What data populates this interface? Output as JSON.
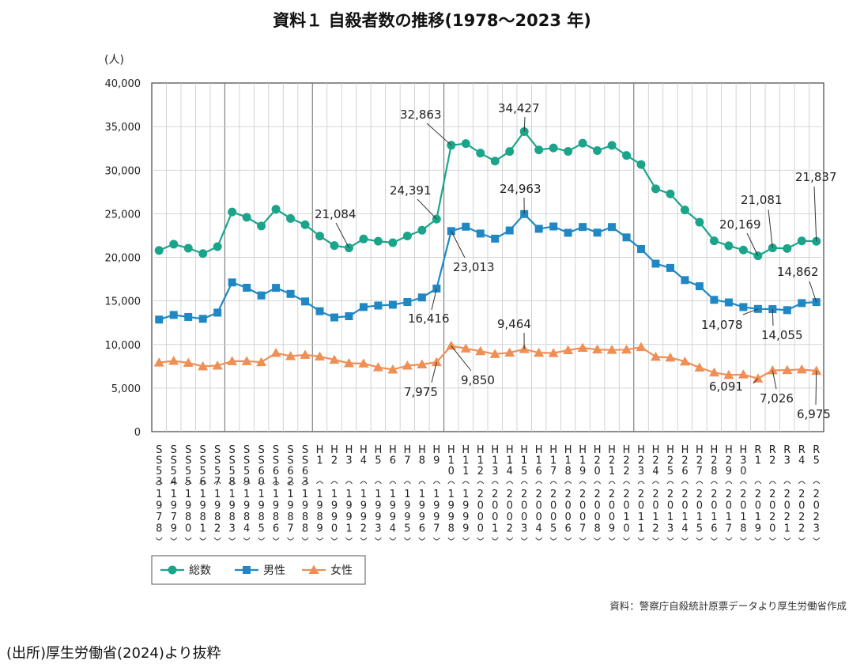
{
  "chart_data": {
    "type": "line",
    "title": "資料１ 自殺者数の推移(1978～2023 年)",
    "ylabel": "(人)",
    "xlabel": "",
    "ylim": [
      0,
      40000
    ],
    "yticks": [
      "0",
      "5,000",
      "10,000",
      "15,000",
      "20,000",
      "25,000",
      "30,000",
      "35,000",
      "40,000"
    ],
    "grid": true,
    "legend_position": "bottom-left",
    "categories": [
      "S53",
      "S54",
      "S55",
      "S56",
      "S57",
      "S58",
      "S59",
      "S60",
      "S61",
      "S62",
      "S63",
      "H1",
      "H2",
      "H3",
      "H4",
      "H5",
      "H6",
      "H7",
      "H8",
      "H9",
      "H10",
      "H11",
      "H12",
      "H13",
      "H14",
      "H15",
      "H16",
      "H17",
      "H18",
      "H19",
      "H20",
      "H21",
      "H22",
      "H23",
      "H24",
      "H25",
      "H26",
      "H27",
      "H28",
      "H29",
      "H30",
      "R1",
      "R2",
      "R3",
      "R4",
      "R5"
    ],
    "era_labels": [
      "SS53",
      "SS54",
      "SS55",
      "SS56",
      "SS57",
      "SS58",
      "SS59",
      "SS60",
      "SS61",
      "SS62",
      "SS63",
      "H1",
      "H2",
      "H3",
      "H4",
      "H5",
      "H6",
      "H7",
      "H8",
      "H9",
      "H10",
      "H11",
      "H12",
      "H13",
      "H14",
      "H15",
      "H16",
      "H17",
      "H18",
      "H19",
      "H20",
      "H21",
      "H22",
      "H23",
      "H24",
      "H25",
      "H26",
      "H27",
      "H28",
      "H29",
      "H30",
      "R1",
      "R2",
      "R3",
      "R4",
      "R5"
    ],
    "year_labels": [
      "1978",
      "1979",
      "1980",
      "1981",
      "1982",
      "1983",
      "1984",
      "1985",
      "1986",
      "1987",
      "1988",
      "1989",
      "1990",
      "1991",
      "1992",
      "1993",
      "1994",
      "1995",
      "1996",
      "1997",
      "1998",
      "1999",
      "2000",
      "2001",
      "2002",
      "2003",
      "2004",
      "2005",
      "2006",
      "2007",
      "2008",
      "2009",
      "2010",
      "2011",
      "2012",
      "2013",
      "2014",
      "2015",
      "2016",
      "2017",
      "2018",
      "2019",
      "2020",
      "2021",
      "2022",
      "2023"
    ],
    "series": [
      {
        "name": "総数",
        "color": "#1aa58a",
        "marker": "circle",
        "values": [
          20788,
          21503,
          21048,
          20434,
          21228,
          25202,
          24596,
          23599,
          25524,
          24460,
          23742,
          22436,
          21346,
          21084,
          22104,
          21851,
          21679,
          22445,
          23104,
          24391,
          32863,
          33048,
          31957,
          31042,
          32143,
          34427,
          32325,
          32552,
          32155,
          33093,
          32249,
          32845,
          31690,
          30651,
          27858,
          27283,
          25427,
          24025,
          21897,
          21321,
          20840,
          20169,
          21081,
          21007,
          21881,
          21837
        ]
      },
      {
        "name": "男性",
        "color": "#1f88c4",
        "marker": "square",
        "values": [
          12859,
          13386,
          13155,
          12942,
          13654,
          17116,
          16508,
          15624,
          16497,
          15802,
          14934,
          13818,
          13102,
          13242,
          14296,
          14468,
          14560,
          14874,
          15393,
          16416,
          23013,
          23512,
          22727,
          22144,
          23080,
          24963,
          23272,
          23540,
          22813,
          23478,
          22831,
          23472,
          22283,
          20955,
          19273,
          18787,
          17386,
          16681,
          15121,
          14826,
          14290,
          14078,
          14055,
          13939,
          14746,
          14862
        ]
      },
      {
        "name": "女性",
        "color": "#ef8f55",
        "marker": "triangle",
        "values": [
          7929,
          8117,
          7893,
          7492,
          7574,
          8086,
          8088,
          7975,
          9027,
          8658,
          8808,
          8618,
          8244,
          7842,
          7808,
          7383,
          7119,
          7571,
          7711,
          7975,
          9850,
          9536,
          9230,
          8898,
          9063,
          9464,
          9053,
          9012,
          9342,
          9615,
          9418,
          9373,
          9407,
          9696,
          8585,
          8496,
          8041,
          7344,
          6776,
          6495,
          6550,
          6091,
          7026,
          7068,
          7135,
          6975
        ]
      }
    ],
    "annotations": [
      {
        "text": "21,084"
      },
      {
        "text": "24,391"
      },
      {
        "text": "32,863"
      },
      {
        "text": "34,427"
      },
      {
        "text": "20,169"
      },
      {
        "text": "21,081"
      },
      {
        "text": "21,837"
      },
      {
        "text": "16,416"
      },
      {
        "text": "23,013"
      },
      {
        "text": "24,963"
      },
      {
        "text": "14,078"
      },
      {
        "text": "14,055"
      },
      {
        "text": "14,862"
      },
      {
        "text": "7,975"
      },
      {
        "text": "9,850"
      },
      {
        "text": "9,464"
      },
      {
        "text": "6,091"
      },
      {
        "text": "7,026"
      },
      {
        "text": "6,975"
      }
    ]
  },
  "source_note": "資料：警察庁自殺統計原票データより厚生労働省作成",
  "origin_note": "(出所)厚生労働省(2024)より抜粋"
}
